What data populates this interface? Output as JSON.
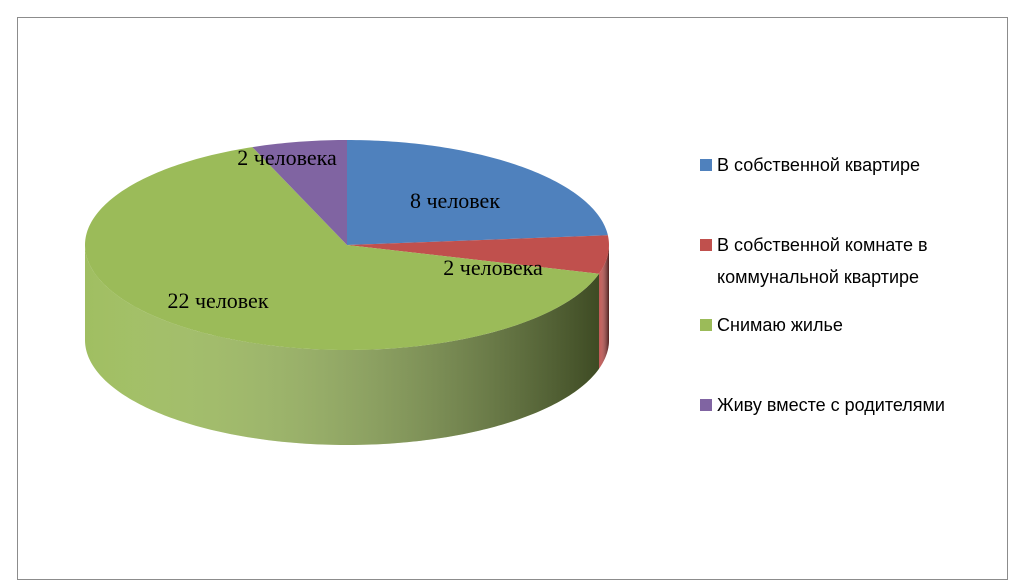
{
  "chart_data": {
    "type": "pie",
    "categories": [
      "В собственной квартире",
      "В собственной комнате в коммунальной квартире",
      "Снимаю жилье",
      "Живу вместе  с родителями"
    ],
    "values": [
      8,
      2,
      22,
      2
    ],
    "value_labels": [
      "8 человек",
      "2 человека",
      "22 человек",
      "2 человека"
    ],
    "colors": [
      "#4f81bd",
      "#c0504d",
      "#9bbb59",
      "#8064a2"
    ],
    "legend": "right"
  }
}
